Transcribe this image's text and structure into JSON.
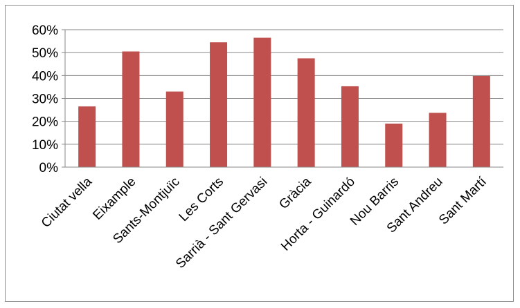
{
  "chart_data": {
    "type": "bar",
    "title": "",
    "xlabel": "",
    "ylabel": "",
    "categories": [
      "Ciutat vella",
      "Eixample",
      "Sants-Montjuïc",
      "Les Corts",
      "Sarrià - Sant Gervasi",
      "Gràcia",
      "Horta - Guinardó",
      "Nou Barris",
      "Sant Andreu",
      "Sant Martí"
    ],
    "values": [
      0.265,
      0.505,
      0.33,
      0.545,
      0.565,
      0.475,
      0.353,
      0.19,
      0.237,
      0.398
    ],
    "ylim": [
      0,
      0.6
    ],
    "yticks": [
      "0%",
      "10%",
      "20%",
      "30%",
      "40%",
      "50%",
      "60%"
    ],
    "grid": true,
    "legend": "none",
    "colors": {
      "bar": "#c0504d",
      "grid": "#868686",
      "axis": "#868686"
    }
  }
}
